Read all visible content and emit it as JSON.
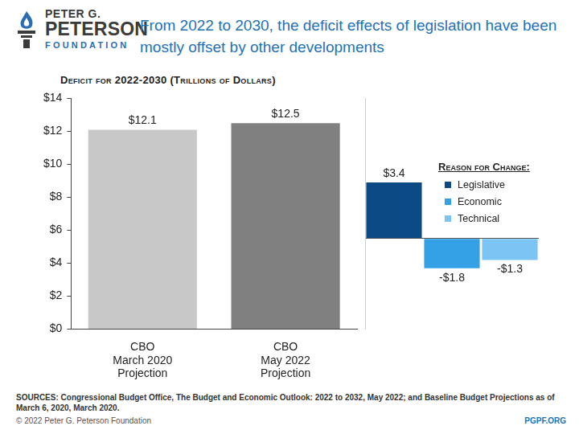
{
  "header": {
    "logo": [
      "PETER G.",
      "PETERSON",
      "FOUNDATION"
    ],
    "title": "From 2022 to 2030, the deficit effects of legislation have been mostly offset by other developments"
  },
  "chart_data": [
    {
      "type": "bar",
      "title": "Deficit for 2022-2030 (Trillions of Dollars)",
      "categories": [
        [
          "CBO",
          "March 2020",
          "Projection"
        ],
        [
          "CBO",
          "May 2022",
          "Projection"
        ]
      ],
      "values": [
        12.1,
        12.5
      ],
      "value_labels": [
        "$12.1",
        "$12.5"
      ],
      "colors": [
        "#c8c8c8",
        "#808080"
      ],
      "ylim": [
        0,
        14
      ],
      "yticks": [
        {
          "value": 0,
          "label": "$0"
        },
        {
          "value": 2,
          "label": "$2"
        },
        {
          "value": 4,
          "label": "$4"
        },
        {
          "value": 6,
          "label": "$6"
        },
        {
          "value": 8,
          "label": "$8"
        },
        {
          "value": 10,
          "label": "$10"
        },
        {
          "value": 12,
          "label": "$12"
        },
        {
          "value": 14,
          "label": "$14"
        }
      ],
      "grid": false,
      "data_labels": true
    },
    {
      "type": "bar",
      "title": "Reason for Change:",
      "categories": [
        null
      ],
      "series": [
        {
          "name": "Legislative",
          "color": "#0b4a85",
          "values": [
            3.4
          ],
          "value_labels": [
            "$3.4"
          ]
        },
        {
          "name": "Economic",
          "color": "#34a0e6",
          "values": [
            -1.8
          ],
          "value_labels": [
            "-$1.8"
          ]
        },
        {
          "name": "Technical",
          "color": "#7cc4f4",
          "values": [
            -1.3
          ],
          "value_labels": [
            "-$1.3"
          ]
        }
      ],
      "ylim": [
        -5.5,
        8.5
      ],
      "yticks": [
        0
      ],
      "grid": true,
      "tick_labels": false,
      "legend": "upper right",
      "data_labels": true
    }
  ],
  "footer": {
    "sources": "SOURCES: Congressional Budget Office, The Budget and Economic Outlook: 2022 to 2032, May 2022; and Baseline Budget Projections as of March 6, 2020, March 2020.",
    "copyright": "© 2022 Peter G. Peterson Foundation",
    "url": "PGPF.ORG"
  }
}
